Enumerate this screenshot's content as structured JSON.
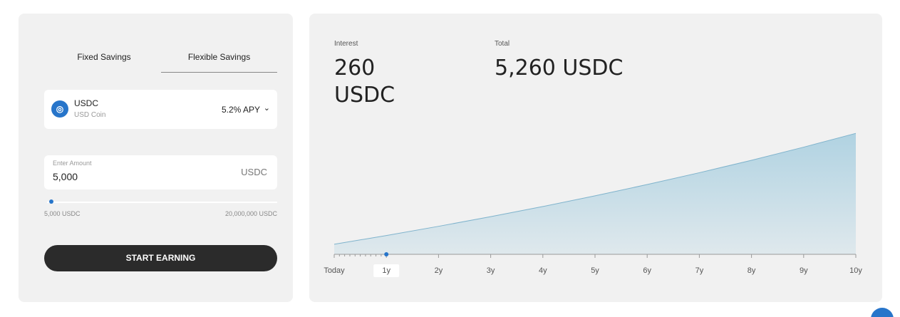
{
  "tabs": [
    "Fixed Savings",
    "Flexible Savings"
  ],
  "asset": {
    "symbol": "USDC",
    "name": "USD Coin",
    "apy": "5.2% APY"
  },
  "amount": {
    "label": "Enter Amount",
    "value": "5,000",
    "unit": "USDC"
  },
  "slider": {
    "min_label": "5,000 USDC",
    "max_label": "20,000,000 USDC"
  },
  "button": "START EARNING",
  "summary": {
    "interest_label": "Interest",
    "interest": "260 USDC",
    "total_label": "Total",
    "total": "5,260 USDC"
  },
  "chart_data": {
    "type": "area",
    "categories": [
      "Today",
      "1y",
      "2y",
      "3y",
      "4y",
      "5y",
      "6y",
      "7y",
      "8y",
      "9y",
      "10y"
    ],
    "values": [
      5000,
      5260,
      5534,
      5821,
      6124,
      6443,
      6778,
      7130,
      7501,
      7891,
      8302
    ],
    "color": "#a9cfe0",
    "ylim": [
      4700,
      11000
    ],
    "selected_index": 1
  }
}
